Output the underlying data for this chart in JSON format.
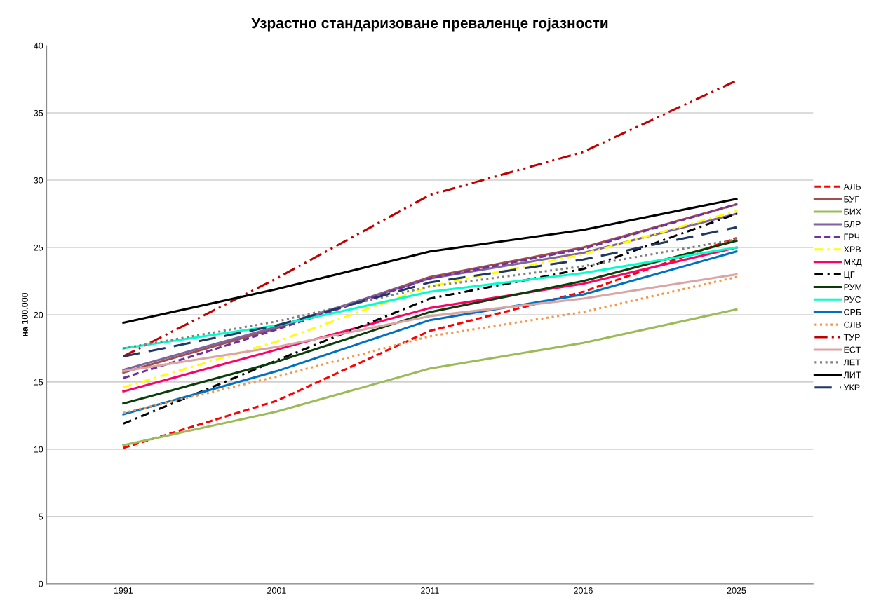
{
  "chart_data": {
    "type": "line",
    "title": "Узрастно стандаризоване преваленце гојазности",
    "ylabel": "на 100.000",
    "categories": [
      "1991",
      "2001",
      "2011",
      "2016",
      "2025"
    ],
    "ylim": [
      0,
      40
    ],
    "yticks": [
      0,
      5,
      10,
      15,
      20,
      25,
      30,
      35,
      40
    ],
    "grid": "y",
    "legend": "right",
    "marker": "none",
    "series": [
      {
        "name": "АЛБ",
        "color": "#ff0000",
        "line_style": "dashed",
        "values": [
          10.1,
          13.6,
          18.8,
          21.7,
          25.7
        ]
      },
      {
        "name": "БУГ",
        "color": "#a0504a",
        "line_style": "solid",
        "values": [
          15.7,
          19.0,
          22.8,
          25.0,
          28.2
        ]
      },
      {
        "name": "БИХ",
        "color": "#9bbb59",
        "line_style": "solid",
        "values": [
          10.3,
          12.8,
          16.0,
          17.9,
          20.4
        ]
      },
      {
        "name": "БЛР",
        "color": "#7f64a0",
        "line_style": "solid",
        "values": [
          15.9,
          19.1,
          22.7,
          24.6,
          27.5
        ]
      },
      {
        "name": "ГРЧ",
        "color": "#7030a0",
        "line_style": "dashed",
        "values": [
          15.3,
          18.9,
          22.7,
          24.9,
          28.2
        ]
      },
      {
        "name": "ХРВ",
        "color": "#ffff00",
        "line_style": "dashdot",
        "values": [
          14.6,
          18.0,
          22.1,
          24.5,
          27.7
        ]
      },
      {
        "name": "МКД",
        "color": "#ff0066",
        "line_style": "solid",
        "values": [
          14.3,
          17.4,
          20.5,
          22.3,
          25.0
        ]
      },
      {
        "name": "ЦГ",
        "color": "#000000",
        "line_style": "dashdot",
        "values": [
          11.9,
          16.6,
          21.2,
          23.4,
          27.5
        ]
      },
      {
        "name": "РУМ",
        "color": "#0a3d0a",
        "line_style": "solid",
        "values": [
          13.4,
          16.5,
          20.2,
          22.5,
          25.5
        ]
      },
      {
        "name": "РУС",
        "color": "#00ffcc",
        "line_style": "solid",
        "values": [
          17.5,
          19.2,
          21.7,
          23.1,
          25.0
        ]
      },
      {
        "name": "СРБ",
        "color": "#0070c0",
        "line_style": "solid",
        "values": [
          12.6,
          15.8,
          19.6,
          21.5,
          24.7
        ]
      },
      {
        "name": "СЛВ",
        "color": "#f79646",
        "line_style": "dotted",
        "values": [
          12.7,
          15.4,
          18.4,
          20.2,
          22.8
        ]
      },
      {
        "name": "ТУР",
        "color": "#c00000",
        "line_style": "dashdotdot",
        "values": [
          16.9,
          22.7,
          28.9,
          32.1,
          37.4
        ]
      },
      {
        "name": "ЕСТ",
        "color": "#d9a5a5",
        "line_style": "solid",
        "values": [
          15.8,
          17.6,
          19.9,
          21.2,
          23.0
        ]
      },
      {
        "name": "ЛЕТ",
        "color": "#808080",
        "line_style": "dotted",
        "values": [
          17.5,
          19.5,
          22.1,
          23.6,
          25.6
        ]
      },
      {
        "name": "ЛИТ",
        "color": "#000000",
        "line_style": "solid",
        "values": [
          19.4,
          21.9,
          24.7,
          26.3,
          28.6
        ]
      },
      {
        "name": "УКР",
        "color": "#1f3864",
        "line_style": "longdash",
        "values": [
          16.9,
          19.2,
          22.4,
          24.1,
          26.5
        ]
      }
    ]
  }
}
